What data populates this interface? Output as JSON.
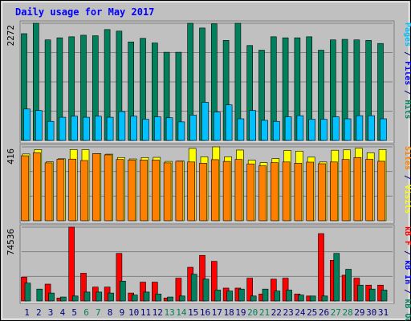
{
  "chart_data": {
    "type": "bar",
    "title": "Daily usage for May 2017",
    "colors": {
      "background": "#c0c0c0",
      "title": "#0000ff",
      "hits": "#00805c",
      "files": "#0080ff",
      "pages": "#00c0ff",
      "visits": "#ffff00",
      "sites": "#ff8000",
      "kb_f": "#ff0000",
      "kb_in": "#0000ff",
      "kb_out": "#00805c",
      "weekend_label": "#00805c",
      "weekday_label": "#000080",
      "grid": "#808080"
    },
    "categories": [
      "1",
      "2",
      "3",
      "4",
      "5",
      "6",
      "7",
      "8",
      "9",
      "10",
      "11",
      "12",
      "13",
      "14",
      "15",
      "16",
      "17",
      "18",
      "19",
      "20",
      "21",
      "22",
      "23",
      "24",
      "25",
      "26",
      "27",
      "28",
      "29",
      "30",
      "31"
    ],
    "weekend_days": [
      "6",
      "7",
      "13",
      "14",
      "20",
      "21",
      "27",
      "28"
    ],
    "panels": [
      {
        "id": "hits-files-pages",
        "ymax_label": "2272",
        "ymax": 2272,
        "legend": [
          {
            "text": "Pages",
            "color": "#00c0ff"
          },
          {
            "text": " / ",
            "color": "#000080"
          },
          {
            "text": "Files",
            "color": "#0000ff"
          },
          {
            "text": " / ",
            "color": "#000080"
          },
          {
            "text": "Hits",
            "color": "#00805c"
          }
        ],
        "series": [
          {
            "name": "Hits",
            "color": "#00805c",
            "values": [
              2070,
              2272,
              1950,
              1990,
              2010,
              2040,
              2030,
              2150,
              2120,
              1910,
              1980,
              1890,
              1710,
              1710,
              2272,
              2180,
              2260,
              1940,
              2272,
              1840,
              1750,
              2010,
              1990,
              1990,
              2010,
              1750,
              1950,
              1960,
              1950,
              1940,
              1880
            ]
          },
          {
            "name": "Files",
            "color": "#0080ff",
            "values": [
              610,
              580,
              370,
              450,
              470,
              450,
              470,
              450,
              560,
              470,
              410,
              460,
              440,
              360,
              490,
              740,
              550,
              690,
              420,
              580,
              390,
              370,
              460,
              480,
              410,
              410,
              460,
              420,
              480,
              480,
              420
            ]
          },
          {
            "name": "Pages",
            "color": "#00c0ff",
            "values": [
              610,
              580,
              370,
              450,
              470,
              450,
              470,
              450,
              560,
              470,
              410,
              460,
              440,
              360,
              490,
              740,
              550,
              690,
              420,
              580,
              390,
              370,
              460,
              480,
              410,
              410,
              460,
              420,
              480,
              480,
              420
            ]
          }
        ]
      },
      {
        "id": "visits-sites",
        "ymax_label": "416",
        "ymax": 416,
        "legend": [
          {
            "text": "Sites",
            "color": "#ff8000"
          },
          {
            "text": " / ",
            "color": "#000080"
          },
          {
            "text": "Visits",
            "color": "#ffff00"
          }
        ],
        "series": [
          {
            "name": "Visits",
            "color": "#ffff00",
            "values": [
              376,
              400,
              332,
              349,
              401,
              400,
              378,
              375,
              356,
              348,
              356,
              357,
              334,
              336,
              407,
              360,
              416,
              360,
              398,
              341,
              327,
              350,
              396,
              392,
              358,
              331,
              397,
              399,
              408,
              383,
              401
            ]
          },
          {
            "name": "Sites",
            "color": "#ff8000",
            "values": [
              366,
              383,
              326,
              346,
              347,
              339,
              378,
              371,
              345,
              342,
              342,
              342,
              326,
              335,
              331,
              324,
              344,
              334,
              345,
              320,
              309,
              327,
              331,
              324,
              330,
              321,
              331,
              345,
              356,
              346,
              335
            ]
          }
        ]
      },
      {
        "id": "kbytes",
        "ymax_label": "74536",
        "ymax": 74536,
        "legend": [
          {
            "text": "kB F",
            "color": "#ff0000"
          },
          {
            "text": " / ",
            "color": "#000080"
          },
          {
            "text": "kB In",
            "color": "#0000ff"
          },
          {
            "text": " / ",
            "color": "#000080"
          },
          {
            "text": "kB Out",
            "color": "#00805c"
          }
        ],
        "series": [
          {
            "name": "kB F",
            "color": "#ff0000",
            "values": [
              24000,
              0,
              17000,
              3000,
              74536,
              28000,
              14000,
              14000,
              48000,
              8000,
              19000,
              19000,
              3000,
              23000,
              34000,
              46000,
              40000,
              13000,
              13000,
              23000,
              7000,
              22000,
              23000,
              7000,
              5000,
              68000,
              41000,
              26000,
              23000,
              16000,
              16000
            ]
          },
          {
            "name": "kB In",
            "color": "#0000ff",
            "values": [
              0,
              0,
              0,
              0,
              0,
              0,
              0,
              0,
              0,
              0,
              0,
              0,
              0,
              0,
              0,
              0,
              0,
              0,
              0,
              0,
              0,
              0,
              0,
              0,
              0,
              0,
              0,
              0,
              0,
              0,
              0
            ]
          },
          {
            "name": "kB Out",
            "color": "#00805c",
            "values": [
              18000,
              12000,
              8000,
              4000,
              5000,
              9000,
              9000,
              8000,
              20000,
              6000,
              9000,
              7000,
              4000,
              5000,
              27000,
              22000,
              11000,
              10000,
              12000,
              5000,
              12000,
              10000,
              11000,
              6000,
              5000,
              5000,
              48000,
              32000,
              16000,
              12000,
              11000
            ]
          }
        ]
      }
    ]
  }
}
